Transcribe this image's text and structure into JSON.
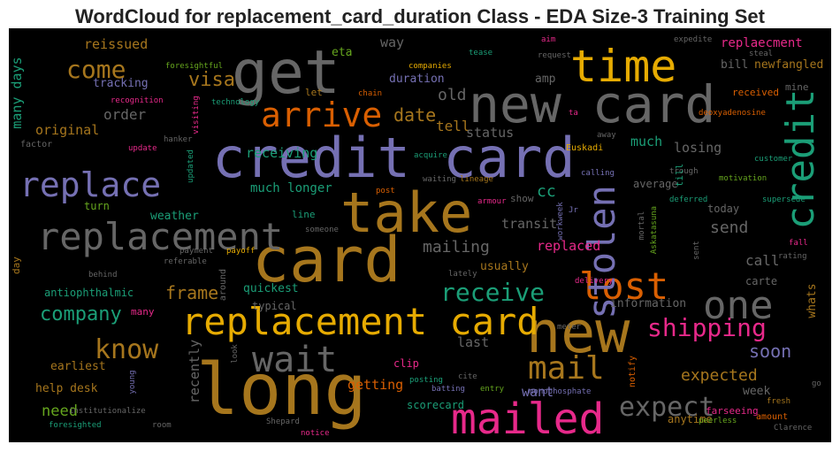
{
  "chart_data": {
    "type": "wordcloud",
    "title": "WordCloud for replacement_card_duration Class - EDA Size-3 Training Set",
    "background": "#000000",
    "words": [
      {
        "text": "credit card",
        "color": "#7570b3"
      },
      {
        "text": "card",
        "color": "#a6761d"
      },
      {
        "text": "long",
        "color": "#a6761d"
      },
      {
        "text": "take",
        "color": "#a6761d"
      },
      {
        "text": "new card",
        "color": "#666666"
      },
      {
        "text": "get",
        "color": "#666666"
      },
      {
        "text": "new",
        "color": "#a6761d"
      },
      {
        "text": "replacement card",
        "color": "#e6ab02"
      },
      {
        "text": "time",
        "color": "#e6ab02"
      },
      {
        "text": "mailed",
        "color": "#e7298a"
      },
      {
        "text": "replacement",
        "color": "#666666"
      },
      {
        "text": "replace",
        "color": "#7570b3"
      },
      {
        "text": "arrive",
        "color": "#d95f02"
      },
      {
        "text": "lost",
        "color": "#d95f02"
      },
      {
        "text": "one",
        "color": "#666666"
      },
      {
        "text": "credit",
        "color": "#1b9e77"
      },
      {
        "text": "stolen",
        "color": "#7570b3"
      },
      {
        "text": "wait",
        "color": "#666666"
      },
      {
        "text": "mail",
        "color": "#a6761d"
      },
      {
        "text": "expect",
        "color": "#666666"
      },
      {
        "text": "shipping",
        "color": "#e7298a"
      },
      {
        "text": "receive",
        "color": "#1b9e77"
      },
      {
        "text": "know",
        "color": "#a6761d"
      },
      {
        "text": "come",
        "color": "#a6761d"
      },
      {
        "text": "company",
        "color": "#1b9e77"
      },
      {
        "text": "frame",
        "color": "#a6761d"
      },
      {
        "text": "visa",
        "color": "#a6761d"
      },
      {
        "text": "date",
        "color": "#a6761d"
      },
      {
        "text": "old",
        "color": "#666666"
      },
      {
        "text": "tell",
        "color": "#a6761d"
      },
      {
        "text": "cc",
        "color": "#1b9e77"
      },
      {
        "text": "mailing",
        "color": "#666666"
      },
      {
        "text": "send",
        "color": "#666666"
      },
      {
        "text": "call",
        "color": "#666666"
      },
      {
        "text": "soon",
        "color": "#7570b3"
      },
      {
        "text": "expected",
        "color": "#a6761d"
      },
      {
        "text": "much",
        "color": "#1b9e77"
      },
      {
        "text": "losing",
        "color": "#666666"
      },
      {
        "text": "much longer",
        "color": "#1b9e77"
      },
      {
        "text": "receiving",
        "color": "#1b9e77"
      },
      {
        "text": "order",
        "color": "#666666"
      },
      {
        "text": "original",
        "color": "#a6761d"
      },
      {
        "text": "reissued",
        "color": "#a6761d"
      },
      {
        "text": "way",
        "color": "#666666"
      },
      {
        "text": "replaecment",
        "color": "#e7298a"
      },
      {
        "text": "bill",
        "color": "#666666"
      },
      {
        "text": "newfangled",
        "color": "#a6761d"
      },
      {
        "text": "mine",
        "color": "#666666"
      },
      {
        "text": "received",
        "color": "#d95f02"
      },
      {
        "text": "status",
        "color": "#666666"
      },
      {
        "text": "duration",
        "color": "#7570b3"
      },
      {
        "text": "eta",
        "color": "#66a61e"
      },
      {
        "text": "amp",
        "color": "#666666"
      },
      {
        "text": "tracking",
        "color": "#7570b3"
      },
      {
        "text": "many days",
        "color": "#1b9e77"
      },
      {
        "text": "replaced",
        "color": "#e7298a"
      },
      {
        "text": "transit",
        "color": "#666666"
      },
      {
        "text": "usually",
        "color": "#a6761d"
      },
      {
        "text": "quickest",
        "color": "#1b9e77"
      },
      {
        "text": "typical",
        "color": "#666666"
      },
      {
        "text": "information",
        "color": "#666666"
      },
      {
        "text": "last",
        "color": "#666666"
      },
      {
        "text": "getting",
        "color": "#d95f02"
      },
      {
        "text": "want",
        "color": "#7570b3"
      },
      {
        "text": "recently",
        "color": "#666666"
      },
      {
        "text": "need",
        "color": "#66a61e"
      },
      {
        "text": "help desk",
        "color": "#a6761d"
      },
      {
        "text": "earliest",
        "color": "#a6761d"
      },
      {
        "text": "antiophthalmic",
        "color": "#1b9e77"
      },
      {
        "text": "weather",
        "color": "#1b9e77"
      },
      {
        "text": "turn",
        "color": "#66a61e"
      },
      {
        "text": "day",
        "color": "#a6761d"
      },
      {
        "text": "scorecard",
        "color": "#1b9e77"
      },
      {
        "text": "clip",
        "color": "#e7298a"
      },
      {
        "text": "week",
        "color": "#666666"
      },
      {
        "text": "whats",
        "color": "#a6761d"
      },
      {
        "text": "carte",
        "color": "#666666"
      },
      {
        "text": "today",
        "color": "#666666"
      },
      {
        "text": "average",
        "color": "#666666"
      },
      {
        "text": "show",
        "color": "#666666"
      },
      {
        "text": "line",
        "color": "#1b9e77"
      },
      {
        "text": "factor",
        "color": "#666666"
      },
      {
        "text": "update",
        "color": "#e7298a"
      },
      {
        "text": "recognition",
        "color": "#e7298a"
      },
      {
        "text": "foresightful",
        "color": "#66a61e"
      },
      {
        "text": "technology",
        "color": "#1b9e77"
      },
      {
        "text": "let",
        "color": "#a6761d"
      },
      {
        "text": "chain",
        "color": "#d95f02"
      },
      {
        "text": "companies",
        "color": "#e6ab02"
      },
      {
        "text": "tease",
        "color": "#1b9e77"
      },
      {
        "text": "request",
        "color": "#666666"
      },
      {
        "text": "aim",
        "color": "#e7298a"
      },
      {
        "text": "expedite",
        "color": "#666666"
      },
      {
        "text": "steal",
        "color": "#666666"
      },
      {
        "text": "deoxyadenosine",
        "color": "#d95f02"
      },
      {
        "text": "ta",
        "color": "#e7298a"
      },
      {
        "text": "Euskadi",
        "color": "#e6ab02"
      },
      {
        "text": "acquire",
        "color": "#1b9e77"
      },
      {
        "text": "calling",
        "color": "#7570b3"
      },
      {
        "text": "away",
        "color": "#666666"
      },
      {
        "text": "trough",
        "color": "#666666"
      },
      {
        "text": "customer",
        "color": "#1b9e77"
      },
      {
        "text": "motivation",
        "color": "#66a61e"
      },
      {
        "text": "supersede",
        "color": "#1b9e77"
      },
      {
        "text": "deferred",
        "color": "#1b9e77"
      },
      {
        "text": "waiting",
        "color": "#666666"
      },
      {
        "text": "lineage",
        "color": "#a6761d"
      },
      {
        "text": "armour",
        "color": "#e7298a"
      },
      {
        "text": "post",
        "color": "#d95f02"
      },
      {
        "text": "Jr",
        "color": "#7570b3"
      },
      {
        "text": "someone",
        "color": "#666666"
      },
      {
        "text": "payment",
        "color": "#666666"
      },
      {
        "text": "payoff",
        "color": "#e6ab02"
      },
      {
        "text": "referable",
        "color": "#666666"
      },
      {
        "text": "behind",
        "color": "#666666"
      },
      {
        "text": "lately",
        "color": "#666666"
      },
      {
        "text": "delivery",
        "color": "#e7298a"
      },
      {
        "text": "fall",
        "color": "#e7298a"
      },
      {
        "text": "rating",
        "color": "#666666"
      },
      {
        "text": "cite",
        "color": "#666666"
      },
      {
        "text": "meter",
        "color": "#666666"
      },
      {
        "text": "many",
        "color": "#e7298a"
      },
      {
        "text": "posting",
        "color": "#1b9e77"
      },
      {
        "text": "batting",
        "color": "#7570b3"
      },
      {
        "text": "entry",
        "color": "#66a61e"
      },
      {
        "text": "monophosphate",
        "color": "#7570b3"
      },
      {
        "text": "notify",
        "color": "#d95f02"
      },
      {
        "text": "farseeing",
        "color": "#e7298a"
      },
      {
        "text": "fresh",
        "color": "#a6761d"
      },
      {
        "text": "go",
        "color": "#666666"
      },
      {
        "text": "anytime",
        "color": "#a6761d"
      },
      {
        "text": "amount",
        "color": "#d95f02"
      },
      {
        "text": "peerless",
        "color": "#66a61e"
      },
      {
        "text": "Clarence",
        "color": "#666666"
      },
      {
        "text": "room",
        "color": "#666666"
      },
      {
        "text": "notice",
        "color": "#e7298a"
      },
      {
        "text": "Shepard",
        "color": "#666666"
      },
      {
        "text": "foresighted",
        "color": "#1b9e77"
      },
      {
        "text": "institutionalize",
        "color": "#666666"
      },
      {
        "text": "young",
        "color": "#7570b3"
      },
      {
        "text": "look",
        "color": "#666666"
      },
      {
        "text": "around",
        "color": "#666666"
      },
      {
        "text": "hanker",
        "color": "#666666"
      },
      {
        "text": "visiting",
        "color": "#e7298a"
      },
      {
        "text": "updated",
        "color": "#1b9e77"
      },
      {
        "text": "workweek",
        "color": "#7570b3"
      },
      {
        "text": "mortal",
        "color": "#666666"
      },
      {
        "text": "Askatasuna",
        "color": "#66a61e"
      },
      {
        "text": "sent",
        "color": "#666666"
      },
      {
        "text": "till",
        "color": "#1b9e77"
      }
    ]
  }
}
